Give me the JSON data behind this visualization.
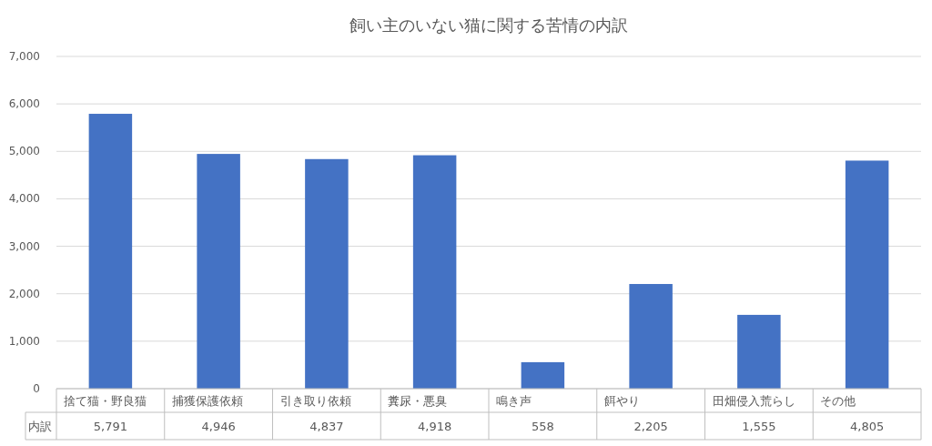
{
  "chart_data": {
    "type": "bar",
    "title": "飼い主のいない猫に関する苦情の内訳",
    "categories": [
      "捨て猫・野良猫",
      "捕獲保護依頼",
      "引き取り依頼",
      "糞尿・悪臭",
      "鳴き声",
      "餌やり",
      "田畑侵入荒らし",
      "その他"
    ],
    "series": [
      {
        "name": "内訳",
        "color": "#4472c4",
        "values": [
          5791,
          4946,
          4837,
          4918,
          558,
          2205,
          1555,
          4805
        ],
        "value_labels": [
          "5,791",
          "4,946",
          "4,837",
          "4,918",
          "558",
          "2,205",
          "1,555",
          "4,805"
        ]
      }
    ],
    "ylim": [
      0,
      7000
    ],
    "yticks": [
      0,
      {
        "value": 1000,
        "label": "1,000"
      },
      {
        "value": 2000,
        "label": "2,000"
      },
      {
        "value": 3000,
        "label": "3,000"
      },
      {
        "value": 4000,
        "label": "4,000"
      },
      {
        "value": 5000,
        "label": "5,000"
      },
      {
        "value": 6000,
        "label": "6,000"
      },
      {
        "value": 7000,
        "label": "7,000"
      }
    ],
    "grid": "y"
  }
}
